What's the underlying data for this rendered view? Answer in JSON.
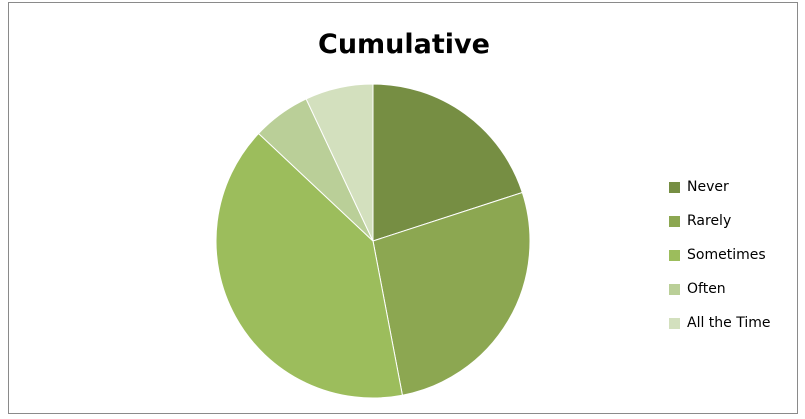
{
  "chart_data": {
    "type": "pie",
    "title": "Cumulative",
    "categories": [
      "Never",
      "Rarely",
      "Sometimes",
      "Often",
      "All the Time"
    ],
    "values": [
      20,
      27,
      40,
      6,
      7
    ],
    "colors": [
      "#768e43",
      "#8ca751",
      "#9cbd5c",
      "#bacf98",
      "#d3e0be"
    ],
    "legend_position": "right"
  }
}
